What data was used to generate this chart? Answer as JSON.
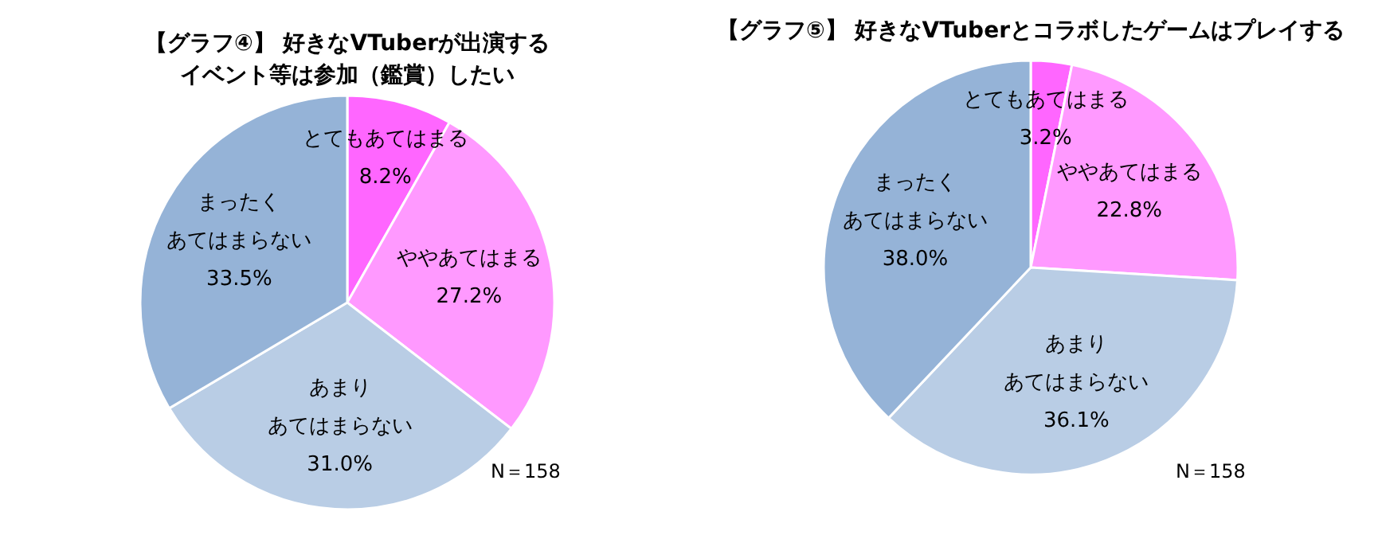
{
  "chart_data": [
    {
      "type": "pie",
      "title": "【グラフ④】 好きなVTuberが出演するイベント等は参加（鑑賞）したい",
      "categories": [
        "とてもあてはまる",
        "ややあてはまる",
        "あまりあてはまらない",
        "まったくあてはまらない"
      ],
      "values": [
        8.2,
        27.2,
        31.0,
        33.5
      ],
      "value_labels": [
        "8.2%",
        "27.2%",
        "31.0%",
        "33.5%"
      ],
      "colors": [
        "#ff66ff",
        "#ff99ff",
        "#b9cde5",
        "#95b3d7"
      ],
      "annotations": [
        "N＝158"
      ]
    },
    {
      "type": "pie",
      "title": "【グラフ⑤】 好きなVTuberとコラボしたゲームはプレイする",
      "categories": [
        "とてもあてはまる",
        "ややあてはまる",
        "あまりあてはまらない",
        "まったくあてはまらない"
      ],
      "values": [
        3.2,
        22.8,
        36.1,
        38.0
      ],
      "value_labels": [
        "3.2%",
        "22.8%",
        "36.1%",
        "38.0%"
      ],
      "colors": [
        "#ff66ff",
        "#ff99ff",
        "#b9cde5",
        "#95b3d7"
      ],
      "annotations": [
        "N＝158"
      ]
    }
  ]
}
